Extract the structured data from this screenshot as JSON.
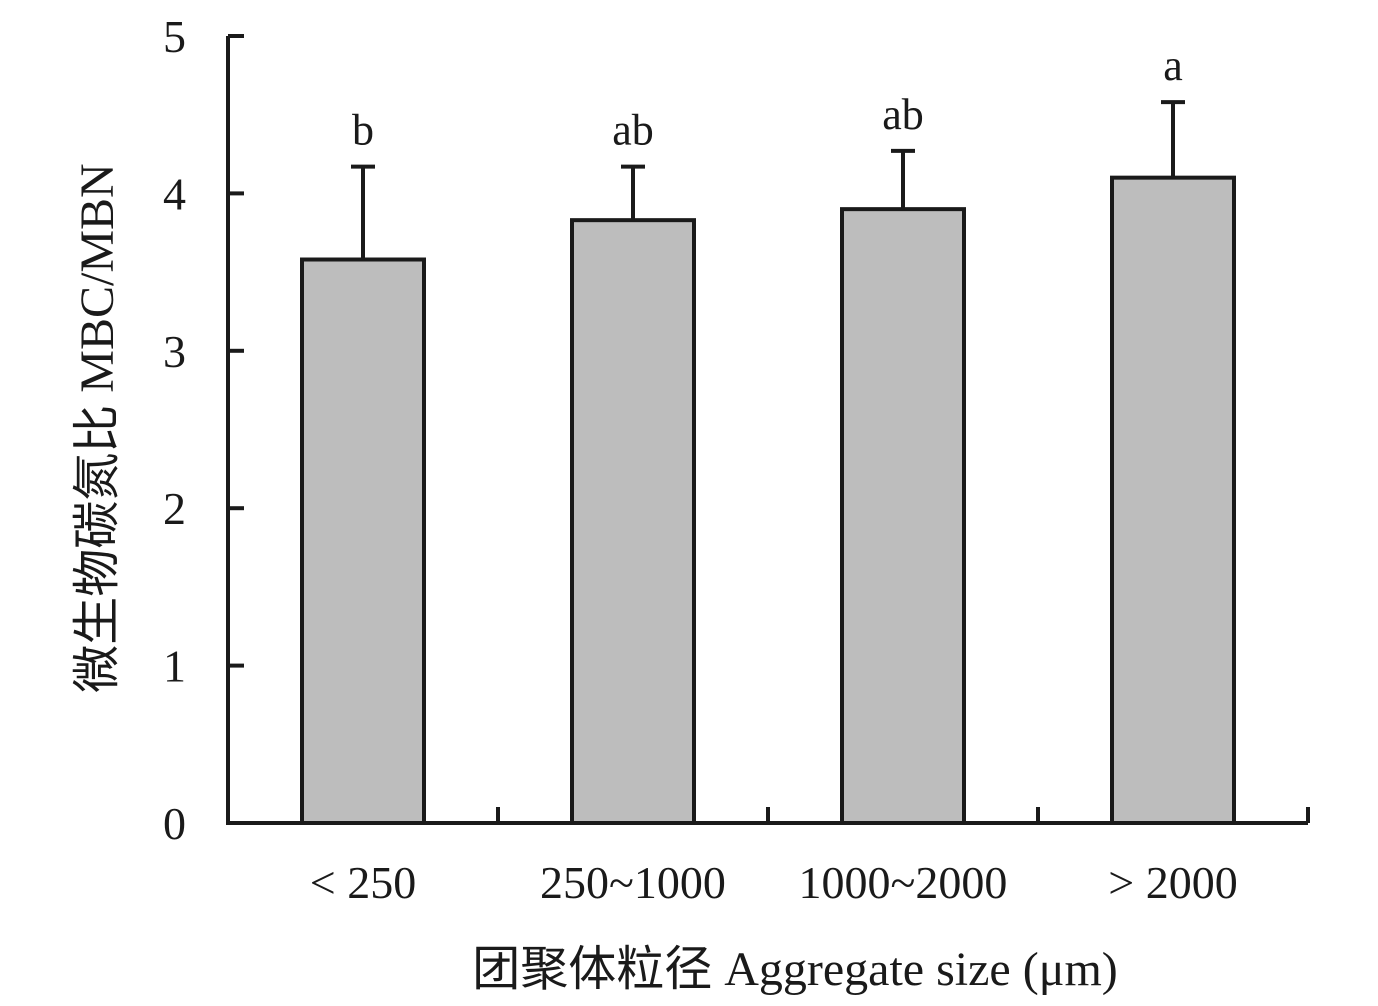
{
  "chart_data": {
    "type": "bar",
    "categories": [
      "< 250",
      "250~1000",
      "1000~2000",
      "> 2000"
    ],
    "values": [
      3.58,
      3.83,
      3.9,
      4.1
    ],
    "errors": [
      0.59,
      0.34,
      0.37,
      0.48
    ],
    "significance": [
      "b",
      "ab",
      "ab",
      "a"
    ],
    "xlabel": "团聚体粒径 Aggregate size (μm)",
    "ylabel": "微生物碳氮比 MBC/MBN",
    "ylim": [
      0,
      5
    ],
    "yticks": [
      0,
      1,
      2,
      3,
      4,
      5
    ],
    "grid": false,
    "bar_color": "#bdbdbd",
    "edge_color": "#1a1a1a"
  }
}
